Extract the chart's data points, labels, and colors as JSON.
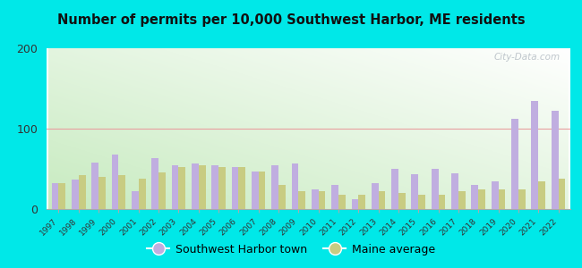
{
  "title": "Number of permits per 10,000 Southwest Harbor, ME residents",
  "years": [
    1997,
    1998,
    1999,
    2000,
    2001,
    2002,
    2003,
    2004,
    2005,
    2006,
    2007,
    2008,
    2009,
    2010,
    2011,
    2012,
    2013,
    2014,
    2015,
    2016,
    2017,
    2018,
    2019,
    2020,
    2021,
    2022
  ],
  "sw_harbor": [
    32,
    37,
    58,
    68,
    22,
    63,
    55,
    57,
    55,
    52,
    47,
    55,
    57,
    25,
    30,
    12,
    32,
    50,
    43,
    50,
    45,
    30,
    35,
    112,
    135,
    122
  ],
  "maine_avg": [
    32,
    42,
    40,
    42,
    38,
    46,
    52,
    55,
    52,
    52,
    47,
    30,
    22,
    22,
    18,
    18,
    22,
    20,
    18,
    18,
    22,
    25,
    25,
    25,
    35,
    38
  ],
  "sw_color": "#c0aee0",
  "me_color": "#c8cc82",
  "ylim": [
    0,
    200
  ],
  "yticks": [
    0,
    100,
    200
  ],
  "bg_outer": "#00e8e8",
  "legend_sw": "Southwest Harbor town",
  "legend_me": "Maine average",
  "watermark": "City-Data.com",
  "grid_color": "#e8a0a0",
  "bar_width": 0.35
}
